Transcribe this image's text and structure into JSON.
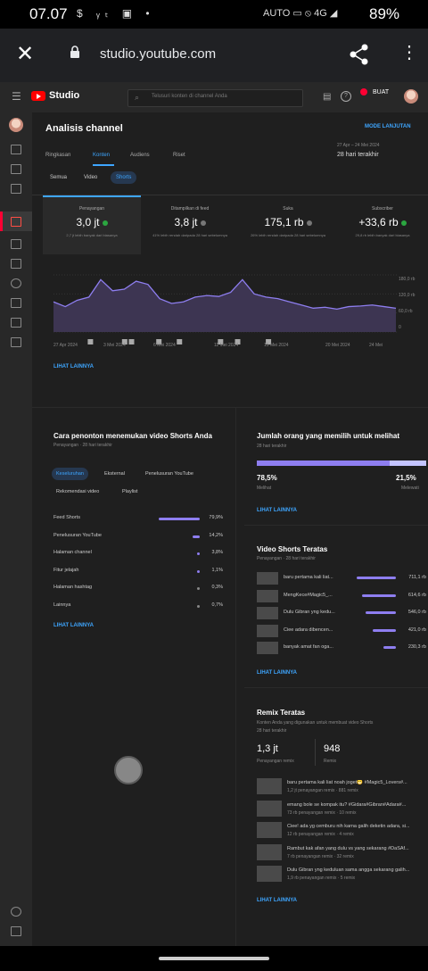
{
  "status": {
    "time": "07.07",
    "left_icons": "$ ᵧₜ ▣ •",
    "right_icons": "AUTO ▭ ⦸ 4G ◢",
    "battery": "89%"
  },
  "browser": {
    "url": "studio.youtube.com"
  },
  "topbar": {
    "brand": "Studio",
    "search_placeholder": "Telusuri konten di channel Anda",
    "create_label": "BUAT"
  },
  "page": {
    "title": "Analisis channel",
    "mode_label": "MODE LANJUTAN",
    "tabs": [
      "Ringkasan",
      "Konten",
      "Audiens",
      "Riset"
    ],
    "active_tab": "Konten",
    "date_range": "27 Apr – 24 Mei 2024",
    "date_label": "28 hari terakhir",
    "chips": [
      "Semua",
      "Video",
      "Shorts"
    ],
    "active_chip": "Shorts"
  },
  "metrics": [
    {
      "label": "Penayangan",
      "value": "3,0 jt",
      "sub": "2,7 jt lebih banyak dari biasanya",
      "status": "up"
    },
    {
      "label": "Ditampilkan di feed",
      "value": "3,8 jt",
      "sub": "41% lebih rendah daripada 28 hari sebelumnya",
      "status": "neutral"
    },
    {
      "label": "Suka",
      "value": "175,1 rb",
      "sub": "26% lebih rendah daripada 28 hari sebelumnya",
      "status": "neutral"
    },
    {
      "label": "Subscriber",
      "value": "+33,6 rb",
      "sub": "29,8 rb lebih banyak dari biasanya",
      "status": "up"
    }
  ],
  "chart_data": {
    "type": "area",
    "x_labels": [
      "27 Apr 2024",
      "3 Mei 2024",
      "6 Mei 2024",
      "11 Mei 2024",
      "15 Mei 2024",
      "20 Mei 2024",
      "24 Mei"
    ],
    "y_ticks": [
      "180,0 rb",
      "120,0 rb",
      "60,0 rb",
      "0"
    ],
    "ylim": [
      0,
      180000
    ],
    "values": [
      95000,
      80000,
      100000,
      110000,
      165000,
      130000,
      135000,
      160000,
      150000,
      105000,
      90000,
      95000,
      110000,
      115000,
      112000,
      125000,
      165000,
      120000,
      110000,
      105000,
      95000,
      85000,
      75000,
      78000,
      72000,
      80000,
      82000,
      85000,
      80000,
      75000
    ]
  },
  "see_more": "LIHAT LAINNYA",
  "discovery": {
    "title": "Cara penonton menemukan video Shorts Anda",
    "subtitle": "Penayangan · 28 hari terakhir",
    "pills": [
      "Keseluruhan",
      "Eksternal",
      "Penelusuran YouTube",
      "Rekomendasi video",
      "Playlist"
    ],
    "active_pill": "Keseluruhan",
    "rows": [
      {
        "label": "Feed Shorts",
        "pct": "79,9%",
        "value": 79.9
      },
      {
        "label": "Penelusuran YouTube",
        "pct": "14,2%",
        "value": 14.2
      },
      {
        "label": "Halaman channel",
        "pct": "3,8%",
        "value": 3.8
      },
      {
        "label": "Fitur jelajah",
        "pct": "1,1%",
        "value": 1.1
      },
      {
        "label": "Halaman hashtag",
        "pct": "0,3%",
        "value": 0.3
      },
      {
        "label": "Lainnya",
        "pct": "0,7%",
        "value": 0.7
      }
    ]
  },
  "chose": {
    "title": "Jumlah orang yang memilih untuk melihat",
    "subtitle": "28 hari terakhir",
    "viewed_pct": "78,5%",
    "viewed_label": "Melihat",
    "viewed_value": 78.5,
    "skipped_pct": "21,5%",
    "skipped_label": "Melewati"
  },
  "top_shorts": {
    "title": "Video Shorts Teratas",
    "subtitle": "Penayangan · 28 hari terakhir",
    "rows": [
      {
        "title": "baru pertama kali liat...",
        "views": "711,1 rb",
        "value": 711.1
      },
      {
        "title": "MengKece#Magic5_...",
        "views": "614,6 rb",
        "value": 614.6
      },
      {
        "title": "Dulu Gibran yng kedu...",
        "views": "546,0 rb",
        "value": 546.0
      },
      {
        "title": "Ciee adara dibencen...",
        "views": "421,0 rb",
        "value": 421.0
      },
      {
        "title": "banyak amat fan oga...",
        "views": "230,3 rb",
        "value": 230.3
      }
    ]
  },
  "remix": {
    "title": "Remix Teratas",
    "subtitle": "Konten Anda yang digunakan untuk membuat video Shorts",
    "range": "28 hari terakhir",
    "views_value": "1,3 jt",
    "views_label": "Penayangan remix",
    "remix_value": "948",
    "remix_label": "Remix",
    "rows": [
      {
        "title": "baru pertama kali liat noah joget😁 #Magic5_Lovers#...",
        "stats": "1,2 jt penayangan remix · 881 remix"
      },
      {
        "title": "emang bole se kompak itu? #Gidara#Gibran#Adara#...",
        "stats": "73 rb penayangan remix · 10 remix"
      },
      {
        "title": "Ciee! ada yg cemburu nih karna galih deketin adara, si...",
        "stats": "12 rb penayangan remix · 4 remix"
      },
      {
        "title": "Rambut kak afan yang dulu vs yang sekarang #DaSAf...",
        "stats": "7 rb penayangan remix · 32 remix"
      },
      {
        "title": "Dulu Gibran yng keduluan sama angga sekarang galih...",
        "stats": "1,9 rb penayangan remix · 5 remix"
      }
    ]
  }
}
